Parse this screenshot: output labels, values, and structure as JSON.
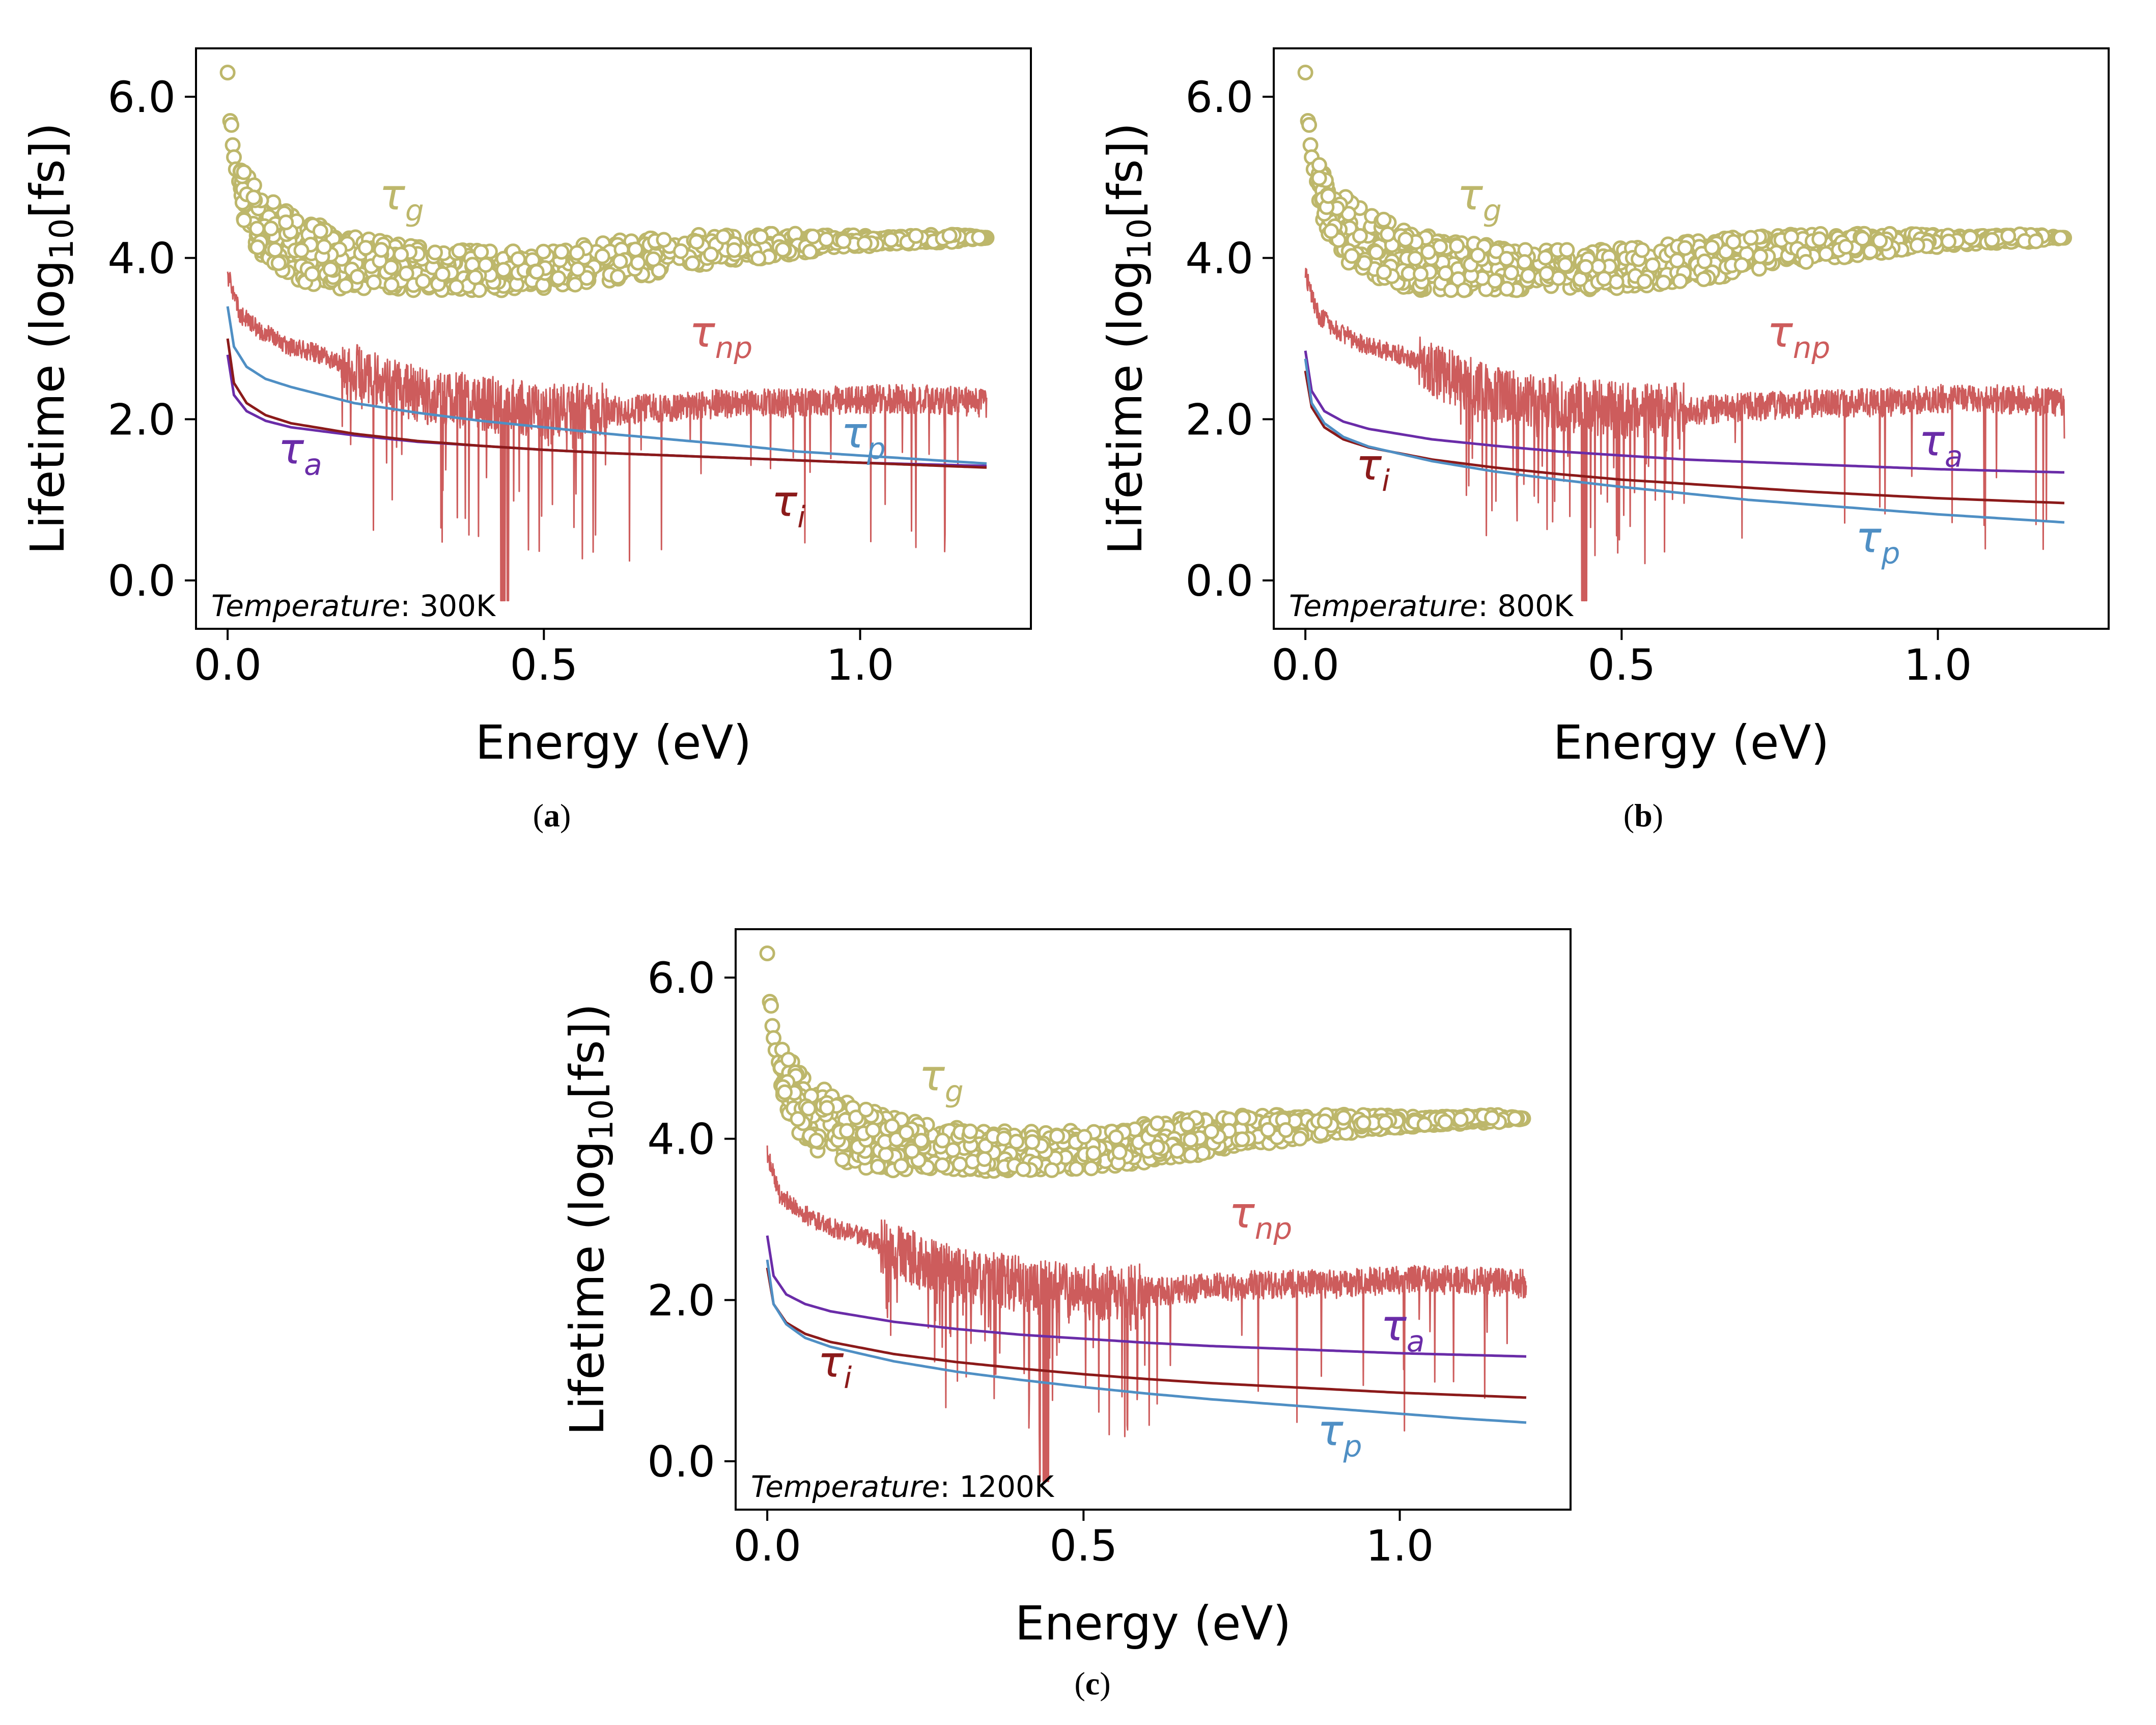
{
  "colors": {
    "tau_g": "#bdb76b",
    "tau_np": "#cd5c5c",
    "tau_a": "#6a2ca8",
    "tau_p": "#4f8fc4",
    "tau_i": "#8b1a1a",
    "axis": "#000000"
  },
  "captions": [
    "a",
    "b",
    "c"
  ],
  "chart_data": [
    {
      "type": "line",
      "panel": "a",
      "xlabel": "Energy (eV)",
      "ylabel": "Lifetime (log10[fs])",
      "ylabel_parts": {
        "pre": "Lifetime (log",
        "sub": "10",
        "post": "[fs])"
      },
      "xlim": [
        -0.05,
        1.27
      ],
      "ylim": [
        -0.6,
        6.6
      ],
      "xticks": [
        0.0,
        0.5,
        1.0
      ],
      "xtick_labels": [
        "0.0",
        "0.5",
        "1.0"
      ],
      "yticks": [
        0.0,
        2.0,
        4.0,
        6.0
      ],
      "ytick_labels": [
        "0.0",
        "2.0",
        "4.0",
        "6.0"
      ],
      "annotation": {
        "label": "Temperature",
        "value": ": 300K"
      },
      "series": [
        {
          "name": "τg",
          "kind": "scatter",
          "x": [
            0.0,
            0.005,
            0.01,
            0.02,
            0.03,
            0.05,
            0.08,
            0.12,
            0.18,
            0.25,
            0.35,
            0.45,
            0.55,
            0.65,
            0.75,
            0.85,
            0.95,
            1.05,
            1.15,
            1.2
          ],
          "y_mid": [
            6.3,
            5.6,
            5.2,
            4.9,
            4.7,
            4.45,
            4.25,
            4.1,
            3.95,
            3.9,
            3.85,
            3.85,
            3.9,
            4.0,
            4.1,
            4.15,
            4.2,
            4.22,
            4.25,
            4.25
          ],
          "y_spread": [
            0.0,
            0.1,
            0.2,
            0.3,
            0.35,
            0.4,
            0.4,
            0.4,
            0.35,
            0.3,
            0.25,
            0.25,
            0.25,
            0.25,
            0.2,
            0.15,
            0.1,
            0.05,
            0.05,
            0.0
          ]
        },
        {
          "name": "τnp",
          "kind": "noisy",
          "x": [
            0.0,
            0.02,
            0.05,
            0.1,
            0.15,
            0.2,
            0.3,
            0.4,
            0.5,
            0.6,
            0.7,
            0.8,
            0.9,
            1.0,
            1.1,
            1.2
          ],
          "y": [
            3.8,
            3.3,
            3.1,
            2.9,
            2.8,
            2.6,
            2.3,
            2.2,
            2.1,
            2.1,
            2.15,
            2.2,
            2.2,
            2.25,
            2.25,
            2.2
          ]
        },
        {
          "name": "τp",
          "kind": "line",
          "x": [
            0.0,
            0.01,
            0.03,
            0.06,
            0.1,
            0.2,
            0.3,
            0.4,
            0.5,
            0.6,
            0.7,
            0.8,
            0.9,
            1.0,
            1.1,
            1.2
          ],
          "y": [
            3.4,
            2.9,
            2.65,
            2.5,
            2.4,
            2.2,
            2.08,
            1.98,
            1.9,
            1.82,
            1.75,
            1.68,
            1.6,
            1.55,
            1.5,
            1.45
          ]
        },
        {
          "name": "τa",
          "kind": "line",
          "x": [
            0.0,
            0.01,
            0.03,
            0.06,
            0.1,
            0.2,
            0.3,
            0.4,
            0.5,
            0.6,
            0.7,
            0.8,
            0.9,
            1.0,
            1.1,
            1.2
          ],
          "y": [
            2.8,
            2.3,
            2.1,
            1.98,
            1.9,
            1.8,
            1.72,
            1.67,
            1.62,
            1.58,
            1.55,
            1.52,
            1.49,
            1.46,
            1.44,
            1.42
          ]
        },
        {
          "name": "τi",
          "kind": "line",
          "x": [
            0.0,
            0.01,
            0.03,
            0.06,
            0.1,
            0.2,
            0.3,
            0.4,
            0.5,
            0.6,
            0.7,
            0.8,
            0.9,
            1.0,
            1.1,
            1.2
          ],
          "y": [
            3.0,
            2.45,
            2.2,
            2.05,
            1.95,
            1.82,
            1.73,
            1.67,
            1.62,
            1.58,
            1.55,
            1.52,
            1.49,
            1.46,
            1.43,
            1.4
          ]
        }
      ],
      "labels": [
        {
          "series": "τg",
          "base": "τ",
          "sub": "g",
          "x": 0.24,
          "y": 4.6
        },
        {
          "series": "τnp",
          "base": "τ",
          "sub": "np",
          "x": 0.73,
          "y": 2.9
        },
        {
          "series": "τp",
          "base": "τ",
          "sub": "p",
          "x": 0.97,
          "y": 1.65
        },
        {
          "series": "τa",
          "base": "τ",
          "sub": "a",
          "x": 0.08,
          "y": 1.45
        },
        {
          "series": "τi",
          "base": "τ",
          "sub": "i",
          "x": 0.86,
          "y": 0.8
        }
      ]
    },
    {
      "type": "line",
      "panel": "b",
      "xlabel": "Energy (eV)",
      "ylabel": "Lifetime (log10[fs])",
      "ylabel_parts": {
        "pre": "Lifetime (log",
        "sub": "10",
        "post": "[fs])"
      },
      "xlim": [
        -0.05,
        1.27
      ],
      "ylim": [
        -0.6,
        6.6
      ],
      "xticks": [
        0.0,
        0.5,
        1.0
      ],
      "xtick_labels": [
        "0.0",
        "0.5",
        "1.0"
      ],
      "yticks": [
        0.0,
        2.0,
        4.0,
        6.0
      ],
      "ytick_labels": [
        "0.0",
        "2.0",
        "4.0",
        "6.0"
      ],
      "annotation": {
        "label": "Temperature",
        "value": ": 800K"
      },
      "series": [
        {
          "name": "τg",
          "kind": "scatter",
          "x": [
            0.0,
            0.005,
            0.01,
            0.02,
            0.03,
            0.05,
            0.08,
            0.12,
            0.18,
            0.25,
            0.35,
            0.45,
            0.55,
            0.65,
            0.75,
            0.85,
            0.95,
            1.05,
            1.15,
            1.2
          ],
          "y_mid": [
            6.3,
            5.6,
            5.2,
            4.9,
            4.7,
            4.45,
            4.25,
            4.1,
            3.95,
            3.9,
            3.85,
            3.85,
            3.9,
            4.0,
            4.1,
            4.15,
            4.2,
            4.22,
            4.25,
            4.25
          ],
          "y_spread": [
            0.0,
            0.1,
            0.2,
            0.3,
            0.35,
            0.4,
            0.4,
            0.4,
            0.35,
            0.3,
            0.25,
            0.25,
            0.25,
            0.25,
            0.2,
            0.15,
            0.1,
            0.05,
            0.05,
            0.0
          ]
        },
        {
          "name": "τnp",
          "kind": "noisy",
          "x": [
            0.0,
            0.02,
            0.05,
            0.1,
            0.15,
            0.2,
            0.3,
            0.4,
            0.5,
            0.6,
            0.7,
            0.8,
            0.9,
            1.0,
            1.1,
            1.2
          ],
          "y": [
            3.8,
            3.3,
            3.1,
            2.9,
            2.8,
            2.6,
            2.3,
            2.2,
            2.1,
            2.1,
            2.15,
            2.2,
            2.2,
            2.25,
            2.25,
            2.2
          ]
        },
        {
          "name": "τa",
          "kind": "line",
          "x": [
            0.0,
            0.01,
            0.03,
            0.06,
            0.1,
            0.2,
            0.3,
            0.4,
            0.5,
            0.6,
            0.7,
            0.8,
            0.9,
            1.0,
            1.1,
            1.2
          ],
          "y": [
            2.85,
            2.35,
            2.1,
            1.97,
            1.88,
            1.75,
            1.67,
            1.6,
            1.55,
            1.5,
            1.47,
            1.44,
            1.41,
            1.38,
            1.36,
            1.34
          ]
        },
        {
          "name": "τi",
          "kind": "line",
          "x": [
            0.0,
            0.01,
            0.03,
            0.06,
            0.1,
            0.2,
            0.3,
            0.4,
            0.5,
            0.6,
            0.7,
            0.8,
            0.9,
            1.0,
            1.1,
            1.2
          ],
          "y": [
            2.6,
            2.15,
            1.9,
            1.75,
            1.65,
            1.5,
            1.4,
            1.32,
            1.25,
            1.2,
            1.15,
            1.1,
            1.06,
            1.02,
            0.99,
            0.96
          ]
        },
        {
          "name": "τp",
          "kind": "line",
          "x": [
            0.0,
            0.01,
            0.03,
            0.06,
            0.1,
            0.2,
            0.3,
            0.4,
            0.5,
            0.6,
            0.7,
            0.8,
            0.9,
            1.0,
            1.1,
            1.2
          ],
          "y": [
            2.75,
            2.2,
            1.95,
            1.78,
            1.66,
            1.48,
            1.35,
            1.25,
            1.16,
            1.08,
            1.0,
            0.94,
            0.88,
            0.82,
            0.77,
            0.72
          ]
        }
      ],
      "labels": [
        {
          "series": "τg",
          "base": "τ",
          "sub": "g",
          "x": 0.24,
          "y": 4.6
        },
        {
          "series": "τnp",
          "base": "τ",
          "sub": "np",
          "x": 0.73,
          "y": 2.9
        },
        {
          "series": "τa",
          "base": "τ",
          "sub": "a",
          "x": 0.97,
          "y": 1.55
        },
        {
          "series": "τi",
          "base": "τ",
          "sub": "i",
          "x": 0.08,
          "y": 1.25
        },
        {
          "series": "τp",
          "base": "τ",
          "sub": "p",
          "x": 0.87,
          "y": 0.35
        }
      ]
    },
    {
      "type": "line",
      "panel": "c",
      "xlabel": "Energy (eV)",
      "ylabel": "Lifetime (log10[fs])",
      "ylabel_parts": {
        "pre": "Lifetime (log",
        "sub": "10",
        "post": "[fs])"
      },
      "xlim": [
        -0.05,
        1.27
      ],
      "ylim": [
        -0.6,
        6.6
      ],
      "xticks": [
        0.0,
        0.5,
        1.0
      ],
      "xtick_labels": [
        "0.0",
        "0.5",
        "1.0"
      ],
      "yticks": [
        0.0,
        2.0,
        4.0,
        6.0
      ],
      "ytick_labels": [
        "0.0",
        "2.0",
        "4.0",
        "6.0"
      ],
      "annotation": {
        "label": "Temperature",
        "value": ": 1200K"
      },
      "series": [
        {
          "name": "τg",
          "kind": "scatter",
          "x": [
            0.0,
            0.005,
            0.01,
            0.02,
            0.03,
            0.05,
            0.08,
            0.12,
            0.18,
            0.25,
            0.35,
            0.45,
            0.55,
            0.65,
            0.75,
            0.85,
            0.95,
            1.05,
            1.15,
            1.2
          ],
          "y_mid": [
            6.3,
            5.6,
            5.2,
            4.9,
            4.7,
            4.45,
            4.25,
            4.1,
            3.95,
            3.9,
            3.85,
            3.85,
            3.9,
            4.0,
            4.1,
            4.15,
            4.2,
            4.22,
            4.25,
            4.25
          ],
          "y_spread": [
            0.0,
            0.1,
            0.2,
            0.3,
            0.35,
            0.4,
            0.4,
            0.4,
            0.35,
            0.3,
            0.25,
            0.25,
            0.25,
            0.25,
            0.2,
            0.15,
            0.1,
            0.05,
            0.05,
            0.0
          ]
        },
        {
          "name": "τnp",
          "kind": "noisy",
          "x": [
            0.0,
            0.02,
            0.05,
            0.1,
            0.15,
            0.2,
            0.3,
            0.4,
            0.5,
            0.6,
            0.7,
            0.8,
            0.9,
            1.0,
            1.1,
            1.2
          ],
          "y": [
            3.8,
            3.3,
            3.1,
            2.9,
            2.8,
            2.6,
            2.3,
            2.2,
            2.1,
            2.1,
            2.15,
            2.2,
            2.2,
            2.25,
            2.25,
            2.2
          ]
        },
        {
          "name": "τa",
          "kind": "line",
          "x": [
            0.0,
            0.01,
            0.03,
            0.06,
            0.1,
            0.2,
            0.3,
            0.4,
            0.5,
            0.6,
            0.7,
            0.8,
            0.9,
            1.0,
            1.1,
            1.2
          ],
          "y": [
            2.8,
            2.3,
            2.07,
            1.95,
            1.86,
            1.73,
            1.64,
            1.57,
            1.52,
            1.47,
            1.43,
            1.4,
            1.37,
            1.34,
            1.32,
            1.3
          ]
        },
        {
          "name": "τi",
          "kind": "line",
          "x": [
            0.0,
            0.01,
            0.03,
            0.06,
            0.1,
            0.2,
            0.3,
            0.4,
            0.5,
            0.6,
            0.7,
            0.8,
            0.9,
            1.0,
            1.1,
            1.2
          ],
          "y": [
            2.4,
            1.95,
            1.72,
            1.58,
            1.48,
            1.33,
            1.23,
            1.15,
            1.08,
            1.02,
            0.97,
            0.93,
            0.89,
            0.85,
            0.82,
            0.79
          ]
        },
        {
          "name": "τp",
          "kind": "line",
          "x": [
            0.0,
            0.01,
            0.03,
            0.06,
            0.1,
            0.2,
            0.3,
            0.4,
            0.5,
            0.6,
            0.7,
            0.8,
            0.9,
            1.0,
            1.1,
            1.2
          ],
          "y": [
            2.5,
            1.95,
            1.7,
            1.53,
            1.42,
            1.24,
            1.11,
            1.01,
            0.92,
            0.84,
            0.77,
            0.71,
            0.65,
            0.59,
            0.53,
            0.48
          ]
        }
      ],
      "labels": [
        {
          "series": "τg",
          "base": "τ",
          "sub": "g",
          "x": 0.24,
          "y": 4.6
        },
        {
          "series": "τnp",
          "base": "τ",
          "sub": "np",
          "x": 0.73,
          "y": 2.9
        },
        {
          "series": "τa",
          "base": "τ",
          "sub": "a",
          "x": 0.97,
          "y": 1.5
        },
        {
          "series": "τi",
          "base": "τ",
          "sub": "i",
          "x": 0.08,
          "y": 1.05
        },
        {
          "series": "τp",
          "base": "τ",
          "sub": "p",
          "x": 0.87,
          "y": 0.2
        }
      ]
    }
  ]
}
